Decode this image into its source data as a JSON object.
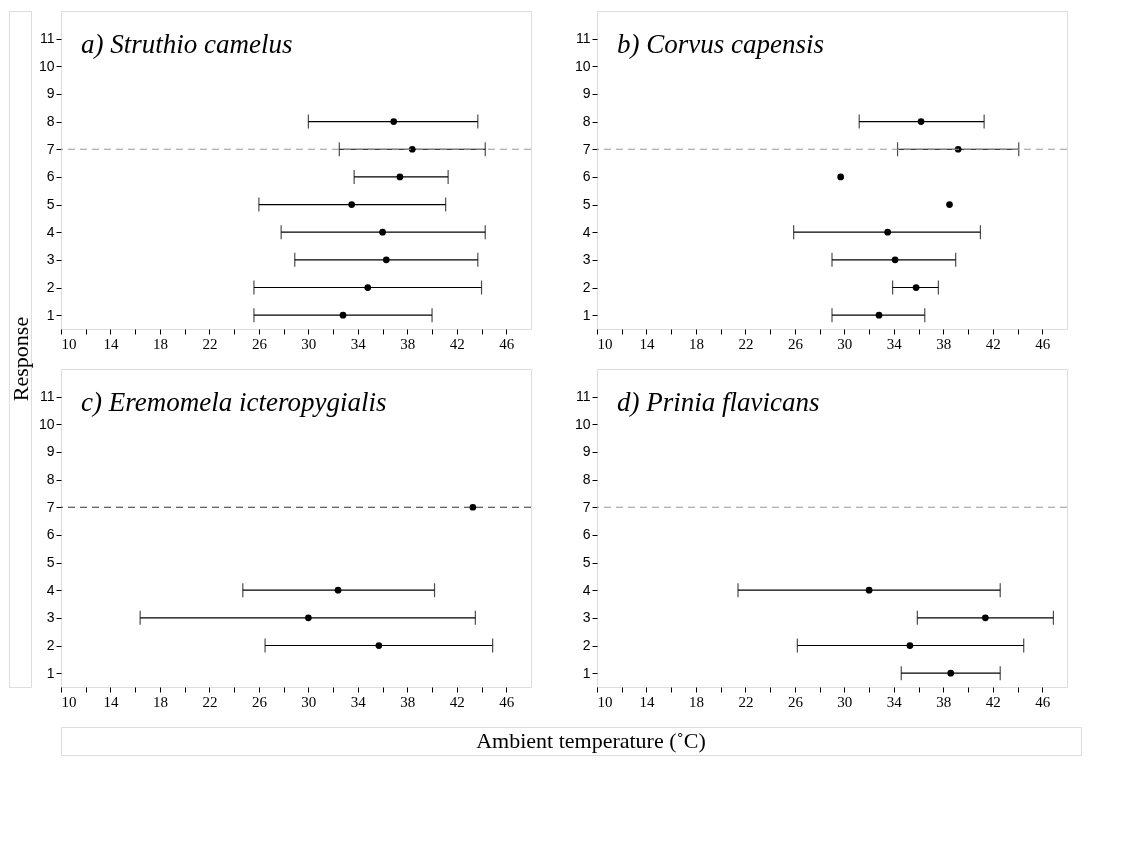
{
  "chart_data": [
    {
      "type": "scatter",
      "title": "a) Struthio camelus",
      "ylabel": "Response",
      "xlabel": "Ambient temperature (˚C)",
      "color": "#000000",
      "marker": "circle",
      "x": [
        36.9,
        38.4,
        37.4,
        33.5,
        36.0,
        36.3,
        34.8,
        32.8
      ],
      "values": [
        8,
        7,
        6,
        5,
        4,
        3,
        2,
        1
      ],
      "xerrors": [
        [
          30.0,
          43.7
        ],
        [
          32.5,
          44.3
        ],
        [
          33.7,
          41.3
        ],
        [
          26.0,
          41.1
        ],
        [
          27.8,
          44.3
        ],
        [
          28.9,
          43.7
        ],
        [
          25.6,
          44.0
        ],
        [
          25.6,
          40.0
        ]
      ],
      "xlim": [
        10,
        48
      ],
      "ylim": [
        0.5,
        12
      ],
      "xticks": [
        10,
        {
          "value": 12,
          "label": null
        },
        14,
        {
          "value": 16,
          "label": null
        },
        18,
        {
          "value": 20,
          "label": null
        },
        22,
        {
          "value": 24,
          "label": null
        },
        26,
        {
          "value": 28,
          "label": null
        },
        30,
        {
          "value": 32,
          "label": null
        },
        34,
        {
          "value": 36,
          "label": null
        },
        38,
        {
          "value": 40,
          "label": null
        },
        42,
        {
          "value": 44,
          "label": null
        },
        46
      ],
      "yticks": [
        1,
        2,
        3,
        4,
        5,
        6,
        7,
        8,
        9,
        10,
        11
      ],
      "ref_lines": [
        {
          "axis": "y",
          "value": 7,
          "color": "#999999",
          "line_style": "dashed"
        }
      ]
    },
    {
      "type": "scatter",
      "title": "b) Corvus capensis",
      "color": "#000000",
      "marker": "circle",
      "x": [
        36.2,
        39.2,
        29.7,
        38.5,
        33.5,
        34.1,
        35.8,
        32.8
      ],
      "values": [
        8,
        7,
        6,
        5,
        4,
        3,
        2,
        1
      ],
      "xerrors": [
        [
          31.2,
          41.3
        ],
        [
          34.3,
          44.1
        ],
        null,
        null,
        [
          25.9,
          41.0
        ],
        [
          29.0,
          39.0
        ],
        [
          33.9,
          37.6
        ],
        [
          29.0,
          36.5
        ]
      ],
      "xlim": [
        10,
        48
      ],
      "ylim": [
        0.5,
        12
      ],
      "xticks": [
        10,
        {
          "value": 12,
          "label": null
        },
        14,
        {
          "value": 16,
          "label": null
        },
        18,
        {
          "value": 20,
          "label": null
        },
        22,
        {
          "value": 24,
          "label": null
        },
        26,
        {
          "value": 28,
          "label": null
        },
        30,
        {
          "value": 32,
          "label": null
        },
        34,
        {
          "value": 36,
          "label": null
        },
        38,
        {
          "value": 40,
          "label": null
        },
        42,
        {
          "value": 44,
          "label": null
        },
        46
      ],
      "yticks": [
        1,
        2,
        3,
        4,
        5,
        6,
        7,
        8,
        9,
        10,
        11
      ],
      "ref_lines": [
        {
          "axis": "y",
          "value": 7,
          "color": "#999999",
          "line_style": "dashed"
        }
      ]
    },
    {
      "type": "scatter",
      "title": "c) Eremomela icteropygialis",
      "color": "#000000",
      "marker": "circle",
      "x": [
        43.3,
        32.4,
        30.0,
        35.7
      ],
      "values": [
        7,
        4,
        3,
        2
      ],
      "xerrors": [
        null,
        [
          24.7,
          40.2
        ],
        [
          16.4,
          43.5
        ],
        [
          26.5,
          44.9
        ]
      ],
      "xlim": [
        10,
        48
      ],
      "ylim": [
        0.5,
        12
      ],
      "xticks": [
        10,
        {
          "value": 12,
          "label": null
        },
        14,
        {
          "value": 16,
          "label": null
        },
        18,
        {
          "value": 20,
          "label": null
        },
        22,
        {
          "value": 24,
          "label": null
        },
        26,
        {
          "value": 28,
          "label": null
        },
        30,
        {
          "value": 32,
          "label": null
        },
        34,
        {
          "value": 36,
          "label": null
        },
        38,
        {
          "value": 40,
          "label": null
        },
        42,
        {
          "value": 44,
          "label": null
        },
        46
      ],
      "yticks": [
        1,
        2,
        3,
        4,
        5,
        6,
        7,
        8,
        9,
        10,
        11
      ],
      "ref_lines": [
        {
          "axis": "y",
          "value": 7,
          "color": "#333333",
          "line_style": "dashed"
        }
      ]
    },
    {
      "type": "scatter",
      "title": "d) Prinia flavicans",
      "color": "#000000",
      "marker": "circle",
      "x": [
        32.0,
        41.4,
        35.3,
        38.6
      ],
      "values": [
        4,
        3,
        2,
        1
      ],
      "xerrors": [
        [
          21.4,
          42.6
        ],
        [
          35.9,
          46.9
        ],
        [
          26.2,
          44.5
        ],
        [
          34.6,
          42.6
        ]
      ],
      "xlim": [
        10,
        48
      ],
      "ylim": [
        0.5,
        12
      ],
      "xticks": [
        10,
        {
          "value": 12,
          "label": null
        },
        14,
        {
          "value": 16,
          "label": null
        },
        18,
        {
          "value": 20,
          "label": null
        },
        22,
        {
          "value": 24,
          "label": null
        },
        26,
        {
          "value": 28,
          "label": null
        },
        30,
        {
          "value": 32,
          "label": null
        },
        34,
        {
          "value": 36,
          "label": null
        },
        38,
        {
          "value": 40,
          "label": null
        },
        42,
        {
          "value": 44,
          "label": null
        },
        46
      ],
      "yticks": [
        1,
        2,
        3,
        4,
        5,
        6,
        7,
        8,
        9,
        10,
        11
      ],
      "ref_lines": [
        {
          "axis": "y",
          "value": 7,
          "color": "#999999",
          "line_style": "dashed"
        }
      ]
    }
  ]
}
